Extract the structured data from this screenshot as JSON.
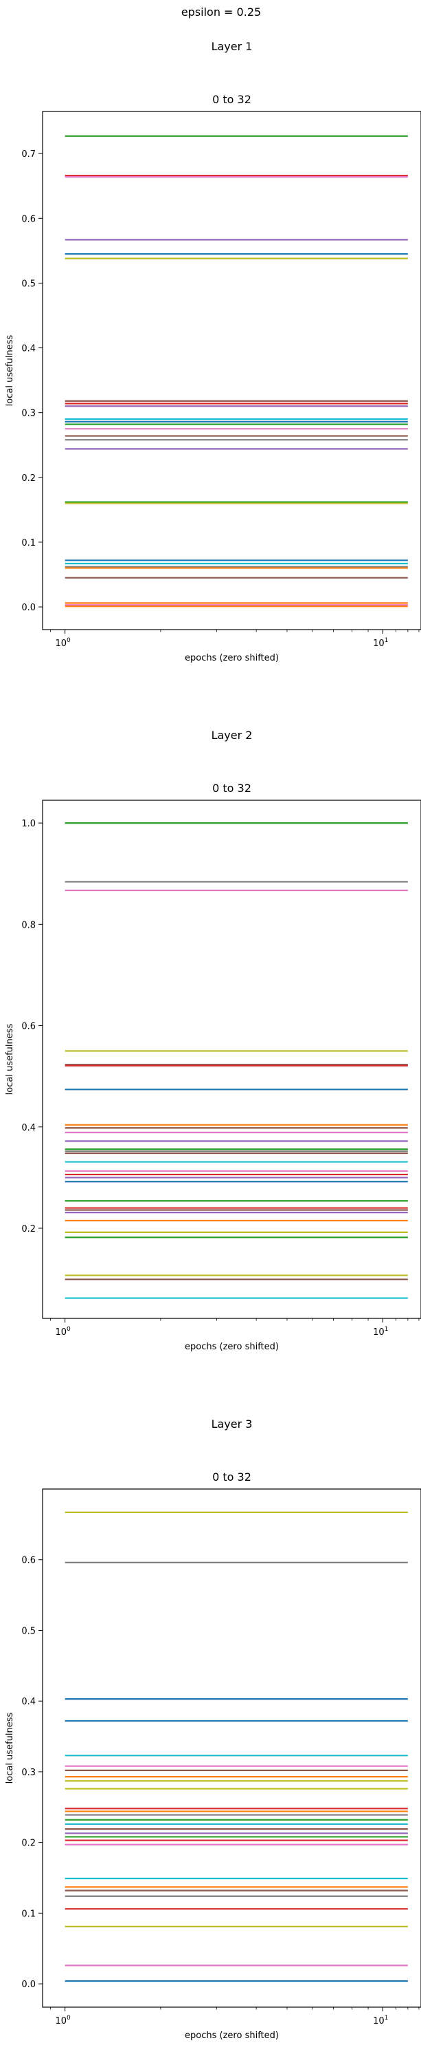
{
  "figure": {
    "suptitle": "epsilon = 0.25"
  },
  "colors": {
    "series": [
      "#1f77b4",
      "#ff7f0e",
      "#2ca02c",
      "#d62728",
      "#9467bd",
      "#8c564b",
      "#e377c2",
      "#7f7f7f",
      "#bcbd22",
      "#17becf"
    ],
    "axes": "#000000",
    "background": "#ffffff"
  },
  "chart_data": [
    {
      "type": "line",
      "layer_title": "Layer 1",
      "title": "0 to 32",
      "xlabel": "epochs (zero shifted)",
      "ylabel": "local usefulness",
      "xscale": "log",
      "xlim": [
        0.85,
        13.2
      ],
      "ylim": [
        -0.035,
        0.765
      ],
      "x_ticks": [
        {
          "value": 1,
          "label": "10",
          "exp": "0"
        },
        {
          "value": 10,
          "label": "10",
          "exp": "1"
        }
      ],
      "y_ticks": [
        {
          "value": 0.0,
          "label": "0.0"
        },
        {
          "value": 0.1,
          "label": "0.1"
        },
        {
          "value": 0.2,
          "label": "0.2"
        },
        {
          "value": 0.3,
          "label": "0.3"
        },
        {
          "value": 0.4,
          "label": "0.4"
        },
        {
          "value": 0.5,
          "label": "0.5"
        },
        {
          "value": 0.6,
          "label": "0.6"
        },
        {
          "value": 0.7,
          "label": "0.7"
        }
      ],
      "grid": false,
      "legend": "none",
      "x": [
        1,
        12
      ],
      "series": [
        {
          "color": "#2ca02c",
          "values": [
            0.727,
            0.727
          ]
        },
        {
          "color": "#d62728",
          "values": [
            0.666,
            0.666
          ]
        },
        {
          "color": "#e377c2",
          "values": [
            0.664,
            0.664
          ]
        },
        {
          "color": "#9467bd",
          "values": [
            0.567,
            0.567
          ]
        },
        {
          "color": "#1f77b4",
          "values": [
            0.545,
            0.545
          ]
        },
        {
          "color": "#bcbd22",
          "values": [
            0.538,
            0.538
          ]
        },
        {
          "color": "#8c564b",
          "values": [
            0.318,
            0.318
          ]
        },
        {
          "color": "#d62728",
          "values": [
            0.314,
            0.314
          ]
        },
        {
          "color": "#9467bd",
          "values": [
            0.31,
            0.31
          ]
        },
        {
          "color": "#17becf",
          "values": [
            0.29,
            0.29
          ]
        },
        {
          "color": "#1f77b4",
          "values": [
            0.286,
            0.286
          ]
        },
        {
          "color": "#2ca02c",
          "values": [
            0.282,
            0.282
          ]
        },
        {
          "color": "#e377c2",
          "values": [
            0.275,
            0.275
          ]
        },
        {
          "color": "#8c564b",
          "values": [
            0.264,
            0.264
          ]
        },
        {
          "color": "#7f7f7f",
          "values": [
            0.258,
            0.258
          ]
        },
        {
          "color": "#9467bd",
          "values": [
            0.244,
            0.244
          ]
        },
        {
          "color": "#2ca02c",
          "values": [
            0.162,
            0.162
          ]
        },
        {
          "color": "#bcbd22",
          "values": [
            0.16,
            0.16
          ]
        },
        {
          "color": "#1f77b4",
          "values": [
            0.072,
            0.072
          ]
        },
        {
          "color": "#17becf",
          "values": [
            0.067,
            0.067
          ]
        },
        {
          "color": "#7f7f7f",
          "values": [
            0.062,
            0.062
          ]
        },
        {
          "color": "#ff7f0e",
          "values": [
            0.06,
            0.06
          ]
        },
        {
          "color": "#8c564b",
          "values": [
            0.045,
            0.045
          ]
        },
        {
          "color": "#ff7f0e",
          "values": [
            0.006,
            0.006
          ]
        },
        {
          "color": "#e377c2",
          "values": [
            0.003,
            0.003
          ]
        },
        {
          "color": "#ff7f0e",
          "values": [
            0.001,
            0.001
          ]
        }
      ]
    },
    {
      "type": "line",
      "layer_title": "Layer 2",
      "title": "0 to 32",
      "xlabel": "epochs (zero shifted)",
      "ylabel": "local usefulness",
      "xscale": "log",
      "xlim": [
        0.85,
        13.2
      ],
      "ylim": [
        0.022,
        1.045
      ],
      "x_ticks": [
        {
          "value": 1,
          "label": "10",
          "exp": "0"
        },
        {
          "value": 10,
          "label": "10",
          "exp": "1"
        }
      ],
      "y_ticks": [
        {
          "value": 0.2,
          "label": "0.2"
        },
        {
          "value": 0.4,
          "label": "0.4"
        },
        {
          "value": 0.6,
          "label": "0.6"
        },
        {
          "value": 0.8,
          "label": "0.8"
        },
        {
          "value": 1.0,
          "label": "1.0"
        }
      ],
      "grid": false,
      "legend": "none",
      "x": [
        1,
        12
      ],
      "series": [
        {
          "color": "#2ca02c",
          "values": [
            1.0,
            1.0
          ]
        },
        {
          "color": "#7f7f7f",
          "values": [
            0.884,
            0.884
          ]
        },
        {
          "color": "#e377c2",
          "values": [
            0.867,
            0.867
          ]
        },
        {
          "color": "#bcbd22",
          "values": [
            0.55,
            0.55
          ]
        },
        {
          "color": "#8c564b",
          "values": [
            0.523,
            0.523
          ]
        },
        {
          "color": "#d62728",
          "values": [
            0.521,
            0.521
          ]
        },
        {
          "color": "#1f77b4",
          "values": [
            0.474,
            0.474
          ]
        },
        {
          "color": "#ff7f0e",
          "values": [
            0.404,
            0.404
          ]
        },
        {
          "color": "#8c564b",
          "values": [
            0.398,
            0.398
          ]
        },
        {
          "color": "#e377c2",
          "values": [
            0.389,
            0.389
          ]
        },
        {
          "color": "#9467bd",
          "values": [
            0.372,
            0.372
          ]
        },
        {
          "color": "#2ca02c",
          "values": [
            0.356,
            0.356
          ]
        },
        {
          "color": "#7f7f7f",
          "values": [
            0.352,
            0.352
          ]
        },
        {
          "color": "#8c564b",
          "values": [
            0.348,
            0.348
          ]
        },
        {
          "color": "#17becf",
          "values": [
            0.331,
            0.331
          ]
        },
        {
          "color": "#e377c2",
          "values": [
            0.313,
            0.313
          ]
        },
        {
          "color": "#d62728",
          "values": [
            0.306,
            0.306
          ]
        },
        {
          "color": "#9467bd",
          "values": [
            0.3,
            0.3
          ]
        },
        {
          "color": "#1f77b4",
          "values": [
            0.292,
            0.292
          ]
        },
        {
          "color": "#2ca02c",
          "values": [
            0.254,
            0.254
          ]
        },
        {
          "color": "#d62728",
          "values": [
            0.24,
            0.24
          ]
        },
        {
          "color": "#8c564b",
          "values": [
            0.236,
            0.236
          ]
        },
        {
          "color": "#9467bd",
          "values": [
            0.231,
            0.231
          ]
        },
        {
          "color": "#ff7f0e",
          "values": [
            0.215,
            0.215
          ]
        },
        {
          "color": "#bcbd22",
          "values": [
            0.192,
            0.192
          ]
        },
        {
          "color": "#2ca02c",
          "values": [
            0.182,
            0.182
          ]
        },
        {
          "color": "#bcbd22",
          "values": [
            0.107,
            0.107
          ]
        },
        {
          "color": "#8c564b",
          "values": [
            0.099,
            0.099
          ]
        },
        {
          "color": "#17becf",
          "values": [
            0.062,
            0.062
          ]
        }
      ]
    },
    {
      "type": "line",
      "layer_title": "Layer 3",
      "title": "0 to 32",
      "xlabel": "epochs (zero shifted)",
      "ylabel": "local usefulness",
      "xscale": "log",
      "xlim": [
        0.85,
        13.2
      ],
      "ylim": [
        -0.033,
        0.7
      ],
      "x_ticks": [
        {
          "value": 1,
          "label": "10",
          "exp": "0"
        },
        {
          "value": 10,
          "label": "10",
          "exp": "1"
        }
      ],
      "y_ticks": [
        {
          "value": 0.0,
          "label": "0.0"
        },
        {
          "value": 0.1,
          "label": "0.1"
        },
        {
          "value": 0.2,
          "label": "0.2"
        },
        {
          "value": 0.3,
          "label": "0.3"
        },
        {
          "value": 0.4,
          "label": "0.4"
        },
        {
          "value": 0.5,
          "label": "0.5"
        },
        {
          "value": 0.6,
          "label": "0.6"
        }
      ],
      "grid": false,
      "legend": "none",
      "x": [
        1,
        12
      ],
      "series": [
        {
          "color": "#bcbd22",
          "values": [
            0.667,
            0.667
          ]
        },
        {
          "color": "#7f7f7f",
          "values": [
            0.596,
            0.596
          ]
        },
        {
          "color": "#1f77b4",
          "values": [
            0.403,
            0.403
          ]
        },
        {
          "color": "#1f77b4",
          "values": [
            0.372,
            0.372
          ]
        },
        {
          "color": "#17becf",
          "values": [
            0.323,
            0.323
          ]
        },
        {
          "color": "#e377c2",
          "values": [
            0.308,
            0.308
          ]
        },
        {
          "color": "#8c564b",
          "values": [
            0.302,
            0.302
          ]
        },
        {
          "color": "#ff7f0e",
          "values": [
            0.293,
            0.293
          ]
        },
        {
          "color": "#bcbd22",
          "values": [
            0.287,
            0.287
          ]
        },
        {
          "color": "#bcbd22",
          "values": [
            0.276,
            0.276
          ]
        },
        {
          "color": "#d62728",
          "values": [
            0.248,
            0.248
          ]
        },
        {
          "color": "#ff7f0e",
          "values": [
            0.244,
            0.244
          ]
        },
        {
          "color": "#7f7f7f",
          "values": [
            0.239,
            0.239
          ]
        },
        {
          "color": "#2ca02c",
          "values": [
            0.232,
            0.232
          ]
        },
        {
          "color": "#17becf",
          "values": [
            0.226,
            0.226
          ]
        },
        {
          "color": "#8c564b",
          "values": [
            0.219,
            0.219
          ]
        },
        {
          "color": "#9467bd",
          "values": [
            0.213,
            0.213
          ]
        },
        {
          "color": "#2ca02c",
          "values": [
            0.208,
            0.208
          ]
        },
        {
          "color": "#d62728",
          "values": [
            0.203,
            0.203
          ]
        },
        {
          "color": "#e377c2",
          "values": [
            0.197,
            0.197
          ]
        },
        {
          "color": "#17becf",
          "values": [
            0.149,
            0.149
          ]
        },
        {
          "color": "#ff7f0e",
          "values": [
            0.137,
            0.137
          ]
        },
        {
          "color": "#8c564b",
          "values": [
            0.132,
            0.132
          ]
        },
        {
          "color": "#7f7f7f",
          "values": [
            0.124,
            0.124
          ]
        },
        {
          "color": "#d62728",
          "values": [
            0.106,
            0.106
          ]
        },
        {
          "color": "#bcbd22",
          "values": [
            0.081,
            0.081
          ]
        },
        {
          "color": "#e377c2",
          "values": [
            0.026,
            0.026
          ]
        },
        {
          "color": "#1f77b4",
          "values": [
            0.004,
            0.004
          ]
        }
      ]
    }
  ]
}
